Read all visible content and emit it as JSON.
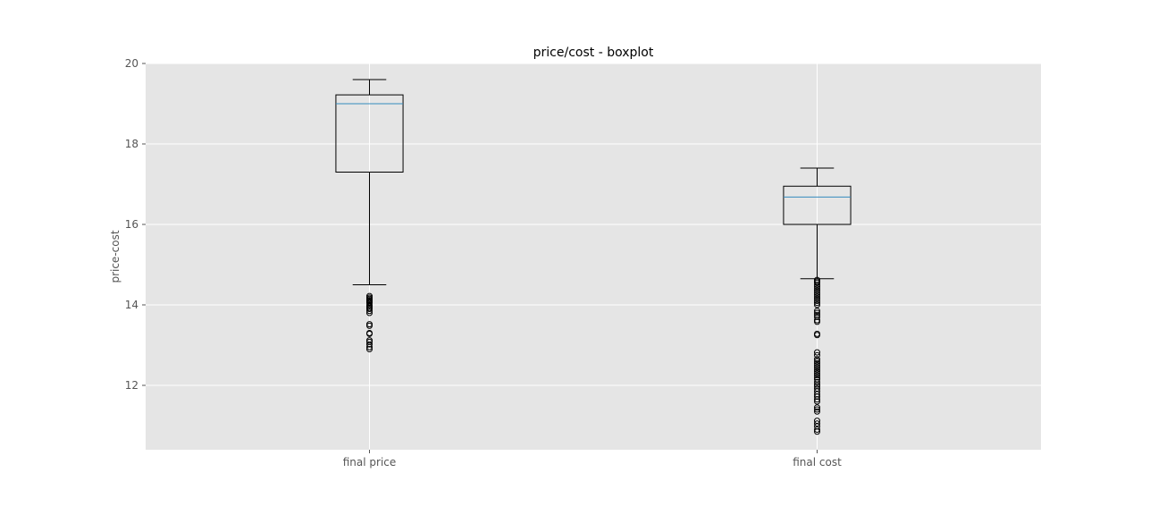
{
  "chart_data": {
    "type": "boxplot",
    "title": "price/cost - boxplot",
    "xlabel": "",
    "ylabel": "price-cost",
    "ylim": [
      10.4,
      20
    ],
    "yticks": [
      12,
      14,
      16,
      18,
      20
    ],
    "ytick_labels": [
      "12",
      "14",
      "16",
      "18",
      "20"
    ],
    "grid": true,
    "categories": [
      "final price",
      "final cost"
    ],
    "boxes": [
      {
        "label": "final price",
        "whisker_low": 14.5,
        "q1": 17.3,
        "median": 19.0,
        "q3": 19.22,
        "whisker_high": 19.6,
        "outliers": [
          14.22,
          14.18,
          14.15,
          14.12,
          14.1,
          14.07,
          14.05,
          14.0,
          13.97,
          13.93,
          13.9,
          13.85,
          13.8,
          13.52,
          13.48,
          13.3,
          13.28,
          13.12,
          13.08,
          13.02,
          12.95,
          12.9
        ]
      },
      {
        "label": "final cost",
        "whisker_low": 14.65,
        "q1": 16.0,
        "median": 16.68,
        "q3": 16.95,
        "whisker_high": 17.4,
        "outliers": [
          14.62,
          14.58,
          14.55,
          14.5,
          14.45,
          14.4,
          14.35,
          14.3,
          14.25,
          14.2,
          14.15,
          14.1,
          14.05,
          14.0,
          13.85,
          13.8,
          13.75,
          13.7,
          13.62,
          13.58,
          13.28,
          13.25,
          12.82,
          12.75,
          12.65,
          12.6,
          12.55,
          12.5,
          12.45,
          12.4,
          12.35,
          12.3,
          12.25,
          12.2,
          12.15,
          12.08,
          12.02,
          11.98,
          11.92,
          11.85,
          11.78,
          11.72,
          11.65,
          11.6,
          11.45,
          11.4,
          11.35,
          11.12,
          11.05,
          10.98,
          10.9,
          10.85
        ]
      }
    ],
    "colors": {
      "plot_background": "#e5e5e5",
      "grid": "#ffffff",
      "box": "#000000",
      "median": "#348abd",
      "text": "#555555",
      "title": "#000000"
    }
  }
}
